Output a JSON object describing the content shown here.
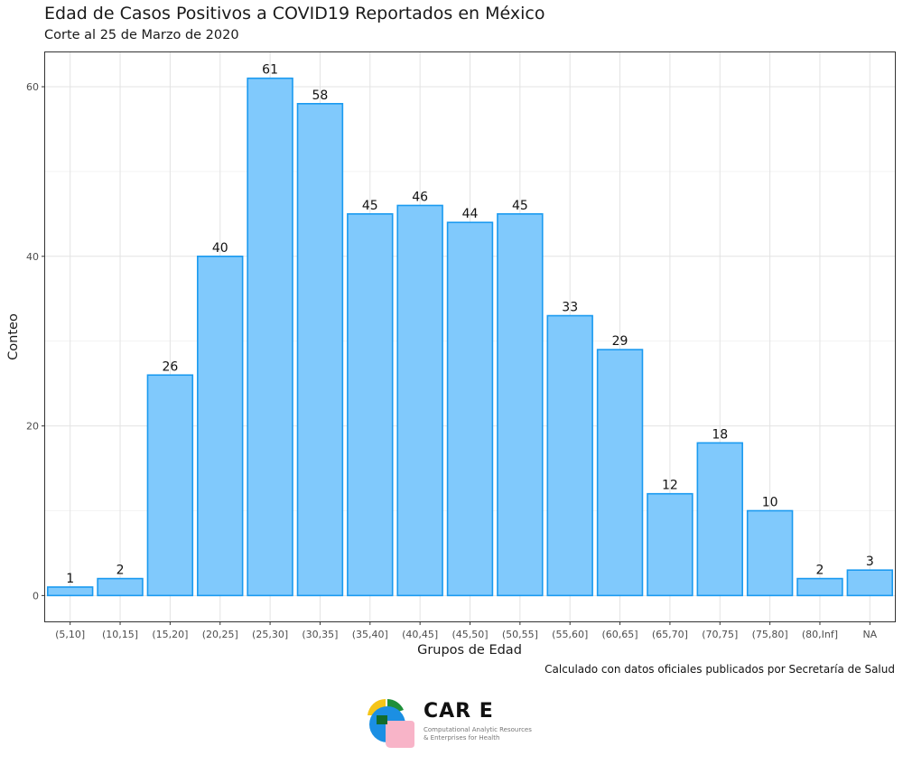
{
  "chart_data": {
    "type": "bar",
    "title": "Edad de Casos Positivos a COVID19 Reportados en México",
    "subtitle": "Corte al 25 de Marzo de 2020",
    "xlabel": "Grupos de Edad",
    "ylabel": "Conteo",
    "categories": [
      "(5,10]",
      "(10,15]",
      "(15,20]",
      "(20,25]",
      "(25,30]",
      "(30,35]",
      "(35,40]",
      "(40,45]",
      "(45,50]",
      "(50,55]",
      "(55,60]",
      "(60,65]",
      "(65,70]",
      "(70,75]",
      "(75,80]",
      "(80,Inf]",
      "NA"
    ],
    "values": [
      1,
      2,
      26,
      40,
      61,
      58,
      45,
      46,
      44,
      45,
      33,
      29,
      12,
      18,
      10,
      2,
      3
    ],
    "ylim": [
      -3.05,
      64.05
    ],
    "yticks": [
      0,
      20,
      40,
      60
    ],
    "grid": true,
    "bar_fill": "#80c9fc",
    "bar_stroke": "#1a9af0"
  },
  "caption": "Calculado con datos oficiales publicados por Secretaría de Salud",
  "logo": {
    "wordmark": "CAR E",
    "line1": "Computational Analytic Resources",
    "line2": "& Enterprises for Health"
  }
}
